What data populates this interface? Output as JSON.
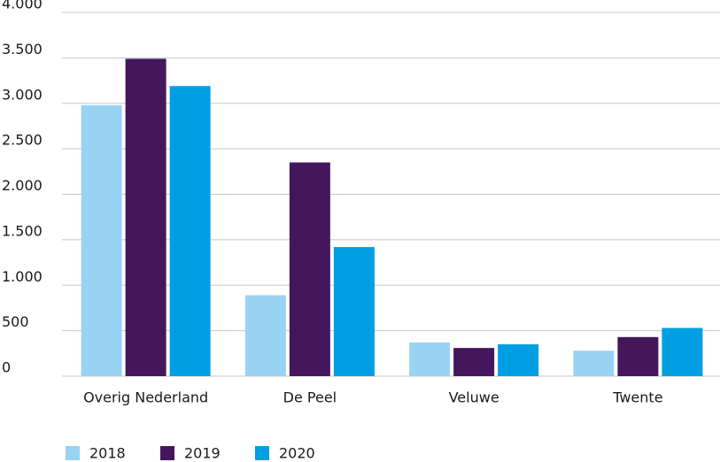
{
  "chart_data": {
    "type": "bar",
    "categories": [
      "Overig Nederland",
      "De Peel",
      "Veluwe",
      "Twente"
    ],
    "series": [
      {
        "name": "2018",
        "color": "#99d3f3",
        "values": [
          2980,
          890,
          370,
          280
        ]
      },
      {
        "name": "2019",
        "color": "#44175c",
        "values": [
          3490,
          2350,
          310,
          430
        ]
      },
      {
        "name": "2020",
        "color": "#009fe3",
        "values": [
          3190,
          1420,
          350,
          530
        ]
      }
    ],
    "ylim": [
      0,
      4000
    ],
    "yticks": [
      0,
      500,
      {
        "value": 1000,
        "label": "1.000"
      },
      {
        "value": 1500,
        "label": "1.500"
      },
      {
        "value": 2000,
        "label": "2.000"
      },
      {
        "value": 2500,
        "label": "2.500"
      },
      {
        "value": 3000,
        "label": "3.000"
      },
      {
        "value": 3500,
        "label": "3.500"
      },
      {
        "value": 4000,
        "label": "4.000"
      }
    ],
    "grid": true,
    "legend": "bottom"
  }
}
